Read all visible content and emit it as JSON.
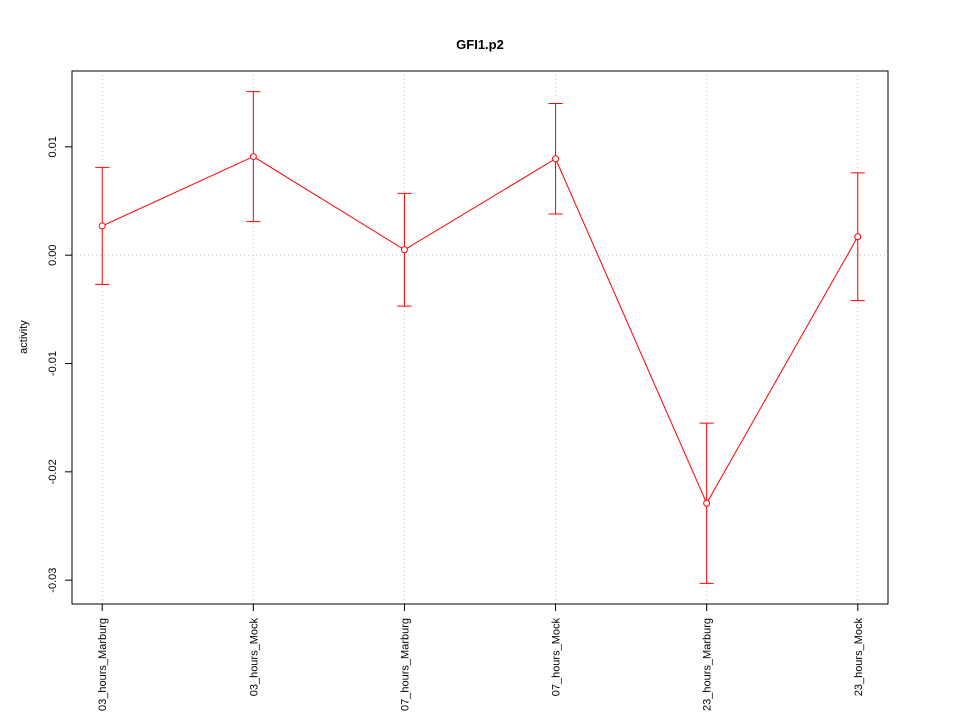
{
  "chart_data": {
    "type": "line",
    "title": "GFI1.p2",
    "y_label": "activity",
    "categories": [
      "03_hours_Marburg",
      "03_hours_Mock",
      "07_hours_Marburg",
      "07_hours_Mock",
      "23_hours_Marburg",
      "23_hours_Mock"
    ],
    "values": [
      0.0027,
      0.0091,
      0.0005,
      0.0089,
      -0.0229,
      0.0017
    ],
    "errors": [
      0.0054,
      0.006,
      0.0052,
      0.0051,
      0.0074,
      0.0059
    ],
    "color": "#ff0000",
    "ylim": [
      -0.0322,
      0.017
    ],
    "yticks": [
      -0.03,
      -0.02,
      -0.01,
      {
        "value": 0,
        "label": "0.00"
      },
      0.01
    ],
    "grid": "x"
  }
}
